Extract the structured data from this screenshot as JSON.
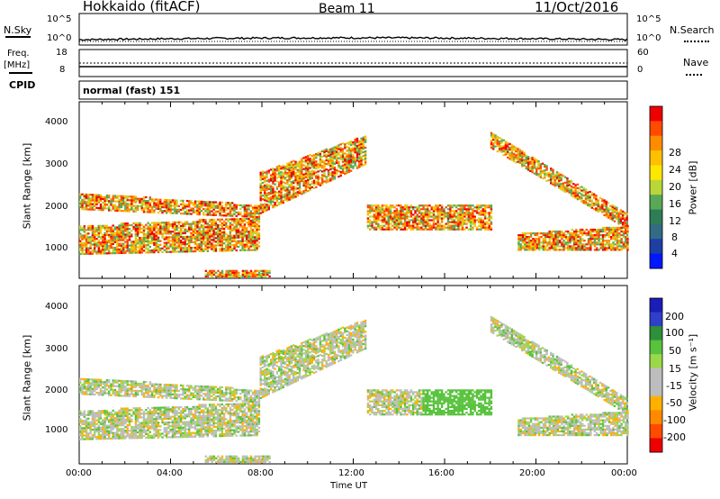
{
  "header": {
    "station": "Hokkaido (fitACF)",
    "beam": "Beam 11",
    "date": "11/Oct/2016"
  },
  "noise_panel": {
    "left_label": "N.Sky",
    "left_ticks": [
      "10^5",
      "10^0"
    ],
    "right_ticks": [
      "10^5",
      "10^0"
    ],
    "right_label": "N.Search"
  },
  "freq_panel": {
    "left_label_1": "Freq.",
    "left_label_2": "[MHz]",
    "left_ticks": [
      "18",
      "8"
    ],
    "right_ticks": [
      "60",
      "0"
    ],
    "right_label": "Nave"
  },
  "cpid_panel": {
    "label": "CPID",
    "value": "normal (fast) 151"
  },
  "chart_data": [
    {
      "type": "heatmap",
      "name": "power",
      "x": [
        "00:00",
        "04:00",
        "08:00",
        "12:00",
        "16:00",
        "20:00",
        "00:00"
      ],
      "xlim_hours": [
        0,
        24
      ],
      "ylabel": "Slant Range [km]",
      "y_ticks": [
        "1000",
        "2000",
        "3000",
        "4000"
      ],
      "ylim": [
        180,
        4500
      ],
      "colorbar_label": "Power [dB]",
      "colorbar_ticks": [
        "28",
        "24",
        "20",
        "16",
        "12",
        "8",
        "4"
      ],
      "colorbar_colors": [
        "#ee0000",
        "#ff4a00",
        "#ff8c00",
        "#ffc000",
        "#ffe600",
        "#b7d838",
        "#58a858",
        "#2e7d56",
        "#316c84",
        "#1e3ea4",
        "#0018ff"
      ]
    },
    {
      "type": "heatmap",
      "name": "velocity",
      "x": [
        "00:00",
        "04:00",
        "08:00",
        "12:00",
        "16:00",
        "20:00",
        "00:00"
      ],
      "xlim_hours": [
        0,
        24
      ],
      "xlabel": "Time UT",
      "ylabel": "Slant Range [km]",
      "y_ticks": [
        "1000",
        "2000",
        "3000",
        "4000"
      ],
      "ylim": [
        180,
        4500
      ],
      "colorbar_label": "Velocity [m s⁻¹]",
      "colorbar_ticks": [
        "200",
        "100",
        "50",
        "15",
        "-15",
        "-50",
        "-100",
        "-200"
      ],
      "colorbar_colors": [
        "#1c1cb8",
        "#2e40c8",
        "#2f8f3a",
        "#58c23c",
        "#9ad84a",
        "#bdbdbd",
        "#bdbdbd",
        "#ffb000",
        "#ff8a00",
        "#ff4a00",
        "#ee0000"
      ]
    }
  ]
}
